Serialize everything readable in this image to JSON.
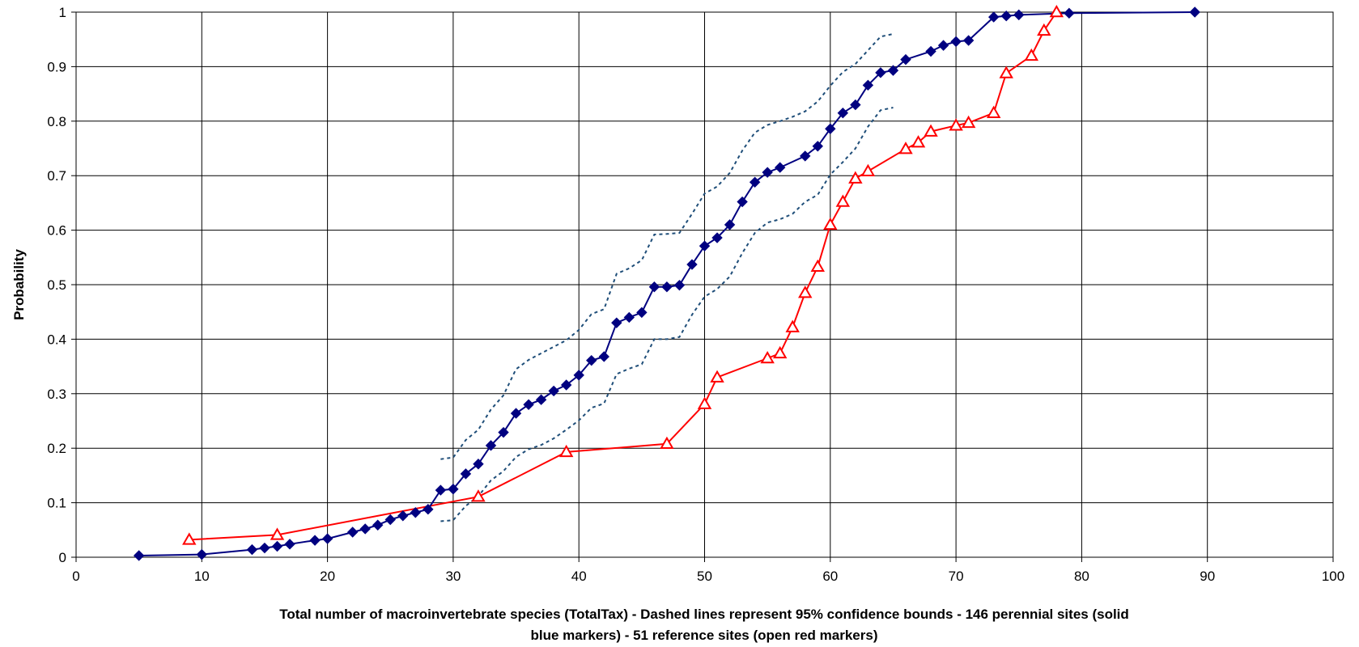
{
  "chart_data": {
    "type": "line",
    "xlabel_line1": "Total number of macroinvertebrate species (TotalTax) - Dashed lines represent 95% confidence bounds - 146 perennial sites (solid",
    "xlabel_line2": "blue markers) - 51 reference sites (open red markers)",
    "ylabel": "Probability",
    "xlim": [
      0,
      100
    ],
    "ylim": [
      0,
      1
    ],
    "x_ticks": [
      "0",
      "10",
      "20",
      "30",
      "40",
      "50",
      "60",
      "70",
      "80",
      "90",
      "100"
    ],
    "y_ticks": [
      "0",
      "0.1",
      "0.2",
      "0.3",
      "0.4",
      "0.5",
      "0.6",
      "0.7",
      "0.8",
      "0.9",
      "1"
    ],
    "grid": true,
    "colors": {
      "perennial": "#000080",
      "reference": "#ff0000",
      "bounds": "#1f4e79",
      "grid": "#000000"
    },
    "series": [
      {
        "style": "solid blue diamonds",
        "x": [
          5,
          10,
          14,
          15,
          16,
          17,
          19,
          20,
          22,
          23,
          24,
          25,
          26,
          27,
          28,
          29,
          30,
          31,
          32,
          33,
          34,
          35,
          36,
          37,
          38,
          39,
          40,
          41,
          42,
          43,
          44,
          45,
          46,
          47,
          48,
          49,
          50,
          51,
          52,
          53,
          54,
          55,
          56,
          58,
          59,
          60,
          61,
          62,
          63,
          64,
          65,
          66,
          68,
          69,
          70,
          71,
          73,
          74,
          75,
          79,
          89
        ],
        "y": [
          0.003,
          0.005,
          0.014,
          0.017,
          0.02,
          0.024,
          0.031,
          0.034,
          0.046,
          0.052,
          0.059,
          0.069,
          0.076,
          0.082,
          0.088,
          0.123,
          0.125,
          0.153,
          0.171,
          0.205,
          0.229,
          0.264,
          0.28,
          0.289,
          0.305,
          0.316,
          0.334,
          0.361,
          0.368,
          0.43,
          0.44,
          0.449,
          0.496,
          0.496,
          0.499,
          0.537,
          0.571,
          0.586,
          0.61,
          0.652,
          0.688,
          0.706,
          0.715,
          0.736,
          0.754,
          0.786,
          0.815,
          0.83,
          0.866,
          0.889,
          0.893,
          0.913,
          0.928,
          0.939,
          0.946,
          0.948,
          0.991,
          0.993,
          0.995,
          0.998,
          1.0
        ]
      },
      {
        "style": "open red triangles",
        "x": [
          9,
          16,
          32,
          39,
          47,
          50,
          51,
          55,
          56,
          57,
          58,
          59,
          60,
          61,
          62,
          63,
          66,
          67,
          68,
          70,
          71,
          73,
          74,
          76,
          77,
          78
        ],
        "y": [
          0.032,
          0.041,
          0.111,
          0.193,
          0.208,
          0.281,
          0.33,
          0.365,
          0.374,
          0.422,
          0.485,
          0.533,
          0.61,
          0.652,
          0.695,
          0.708,
          0.749,
          0.761,
          0.781,
          0.792,
          0.797,
          0.815,
          0.888,
          0.92,
          0.966,
          1.0
        ]
      },
      {
        "style": "dashed upper bound",
        "x": [
          29,
          30,
          31,
          32,
          33,
          34,
          35,
          36,
          37,
          38,
          39,
          40,
          41,
          42,
          43,
          44,
          45,
          46,
          47,
          48,
          49,
          50,
          51,
          52,
          53,
          54,
          55,
          56,
          57,
          58,
          59,
          60,
          61,
          62,
          63,
          64,
          65
        ],
        "y": [
          0.18,
          0.183,
          0.215,
          0.234,
          0.271,
          0.297,
          0.345,
          0.362,
          0.374,
          0.386,
          0.398,
          0.417,
          0.446,
          0.455,
          0.52,
          0.53,
          0.545,
          0.592,
          0.593,
          0.595,
          0.63,
          0.667,
          0.68,
          0.705,
          0.746,
          0.779,
          0.793,
          0.8,
          0.808,
          0.818,
          0.836,
          0.865,
          0.89,
          0.905,
          0.93,
          0.955,
          0.96
        ]
      },
      {
        "style": "dashed lower bound",
        "x": [
          29,
          30,
          31,
          32,
          33,
          34,
          35,
          36,
          37,
          38,
          39,
          40,
          41,
          42,
          43,
          44,
          45,
          46,
          47,
          48,
          49,
          50,
          51,
          52,
          53,
          54,
          55,
          56,
          57,
          58,
          59,
          60,
          61,
          62,
          63,
          64,
          65
        ],
        "y": [
          0.066,
          0.068,
          0.094,
          0.112,
          0.141,
          0.158,
          0.184,
          0.198,
          0.206,
          0.218,
          0.234,
          0.251,
          0.274,
          0.282,
          0.336,
          0.346,
          0.354,
          0.4,
          0.4,
          0.404,
          0.445,
          0.478,
          0.492,
          0.515,
          0.558,
          0.595,
          0.614,
          0.62,
          0.63,
          0.652,
          0.665,
          0.702,
          0.725,
          0.75,
          0.79,
          0.82,
          0.825
        ]
      }
    ]
  }
}
